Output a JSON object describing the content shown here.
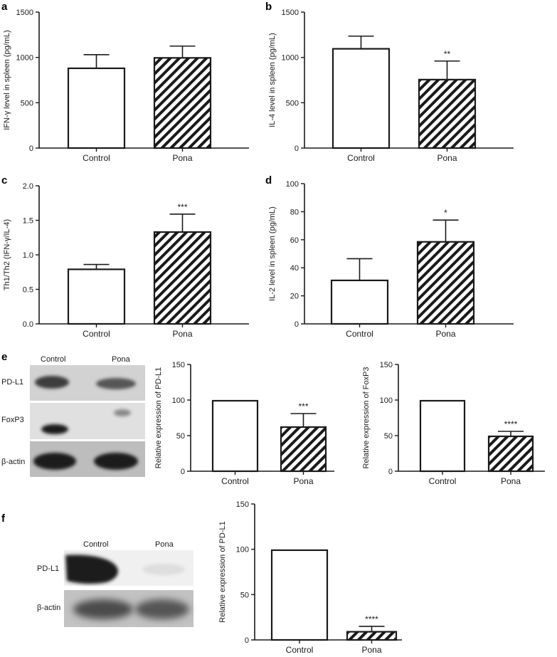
{
  "panels": [
    {
      "letter": "a"
    },
    {
      "letter": "b"
    },
    {
      "letter": "c"
    },
    {
      "letter": "d"
    },
    {
      "letter": "e"
    },
    {
      "letter": "f"
    }
  ],
  "blots": {
    "e": {
      "lanes": [
        "Control",
        "Pona"
      ],
      "rows": [
        "PD-L1",
        "FoxP3",
        "β-actin"
      ]
    },
    "f": {
      "lanes": [
        "Control",
        "Pona"
      ],
      "rows": [
        "PD-L1",
        "β-actin"
      ]
    }
  },
  "chart_data": [
    {
      "id": "a",
      "type": "bar",
      "categories": [
        "Control",
        "Pona"
      ],
      "values": [
        880,
        995
      ],
      "errors": [
        150,
        130
      ],
      "ylabel": "IFN-γ level in spleen (pg/mL)",
      "ylim": [
        0,
        1500
      ],
      "yticks": [
        0,
        500,
        1000,
        1500
      ],
      "yticklabels": [
        "0",
        "500",
        "1000",
        "1500"
      ],
      "significance": [
        "",
        ""
      ]
    },
    {
      "id": "b",
      "type": "bar",
      "categories": [
        "Control",
        "Pona"
      ],
      "values": [
        1095,
        755
      ],
      "errors": [
        140,
        205
      ],
      "ylabel": "IL-4 level in spleen (pg/mL)",
      "ylim": [
        0,
        1500
      ],
      "yticks": [
        0,
        500,
        1000,
        1500
      ],
      "yticklabels": [
        "0",
        "500",
        "1000",
        "1500"
      ],
      "significance": [
        "",
        "**"
      ]
    },
    {
      "id": "c",
      "type": "bar",
      "categories": [
        "Control",
        "Pona"
      ],
      "values": [
        0.79,
        1.33
      ],
      "errors": [
        0.07,
        0.26
      ],
      "ylabel": "Th1/Th2 (IFN-γ/IL-4)",
      "ylim": [
        0,
        2.0
      ],
      "yticks": [
        0,
        0.5,
        1.0,
        1.5,
        2.0
      ],
      "yticklabels": [
        "0.0",
        "0.5",
        "1.0",
        "1.5",
        "2.0"
      ],
      "significance": [
        "",
        "***"
      ]
    },
    {
      "id": "d",
      "type": "bar",
      "categories": [
        "Control",
        "Pona"
      ],
      "values": [
        31,
        58.5
      ],
      "errors": [
        15.5,
        15.5
      ],
      "ylabel": "IL-2 level in spleen (pg/mL)",
      "ylim": [
        0,
        100
      ],
      "yticks": [
        0,
        20,
        40,
        60,
        80,
        100
      ],
      "yticklabels": [
        "0",
        "20",
        "40",
        "60",
        "80",
        "100"
      ],
      "significance": [
        "",
        "*"
      ]
    },
    {
      "id": "e1",
      "type": "bar",
      "categories": [
        "Control",
        "Pona"
      ],
      "values": [
        99,
        62
      ],
      "errors": [
        0,
        19
      ],
      "ylabel": "Relative expression of PD-L1",
      "ylim": [
        0,
        150
      ],
      "yticks": [
        0,
        50,
        100,
        150
      ],
      "yticklabels": [
        "0",
        "50",
        "100",
        "150"
      ],
      "significance": [
        "",
        "***"
      ]
    },
    {
      "id": "e2",
      "type": "bar",
      "categories": [
        "Control",
        "Pona"
      ],
      "values": [
        99,
        49
      ],
      "errors": [
        0,
        7
      ],
      "ylabel": "Relative expression of FoxP3",
      "ylim": [
        0,
        150
      ],
      "yticks": [
        0,
        50,
        100,
        150
      ],
      "yticklabels": [
        "0",
        "50",
        "100",
        "150"
      ],
      "significance": [
        "",
        "****"
      ]
    },
    {
      "id": "f1",
      "type": "bar",
      "categories": [
        "Control",
        "Pona"
      ],
      "values": [
        99,
        9
      ],
      "errors": [
        0,
        6
      ],
      "ylabel": "Relative expression of PD-L1",
      "ylim": [
        0,
        150
      ],
      "yticks": [
        0,
        50,
        100,
        150
      ],
      "yticklabels": [
        "0",
        "50",
        "100",
        "150"
      ],
      "significance": [
        "",
        "****"
      ]
    }
  ]
}
